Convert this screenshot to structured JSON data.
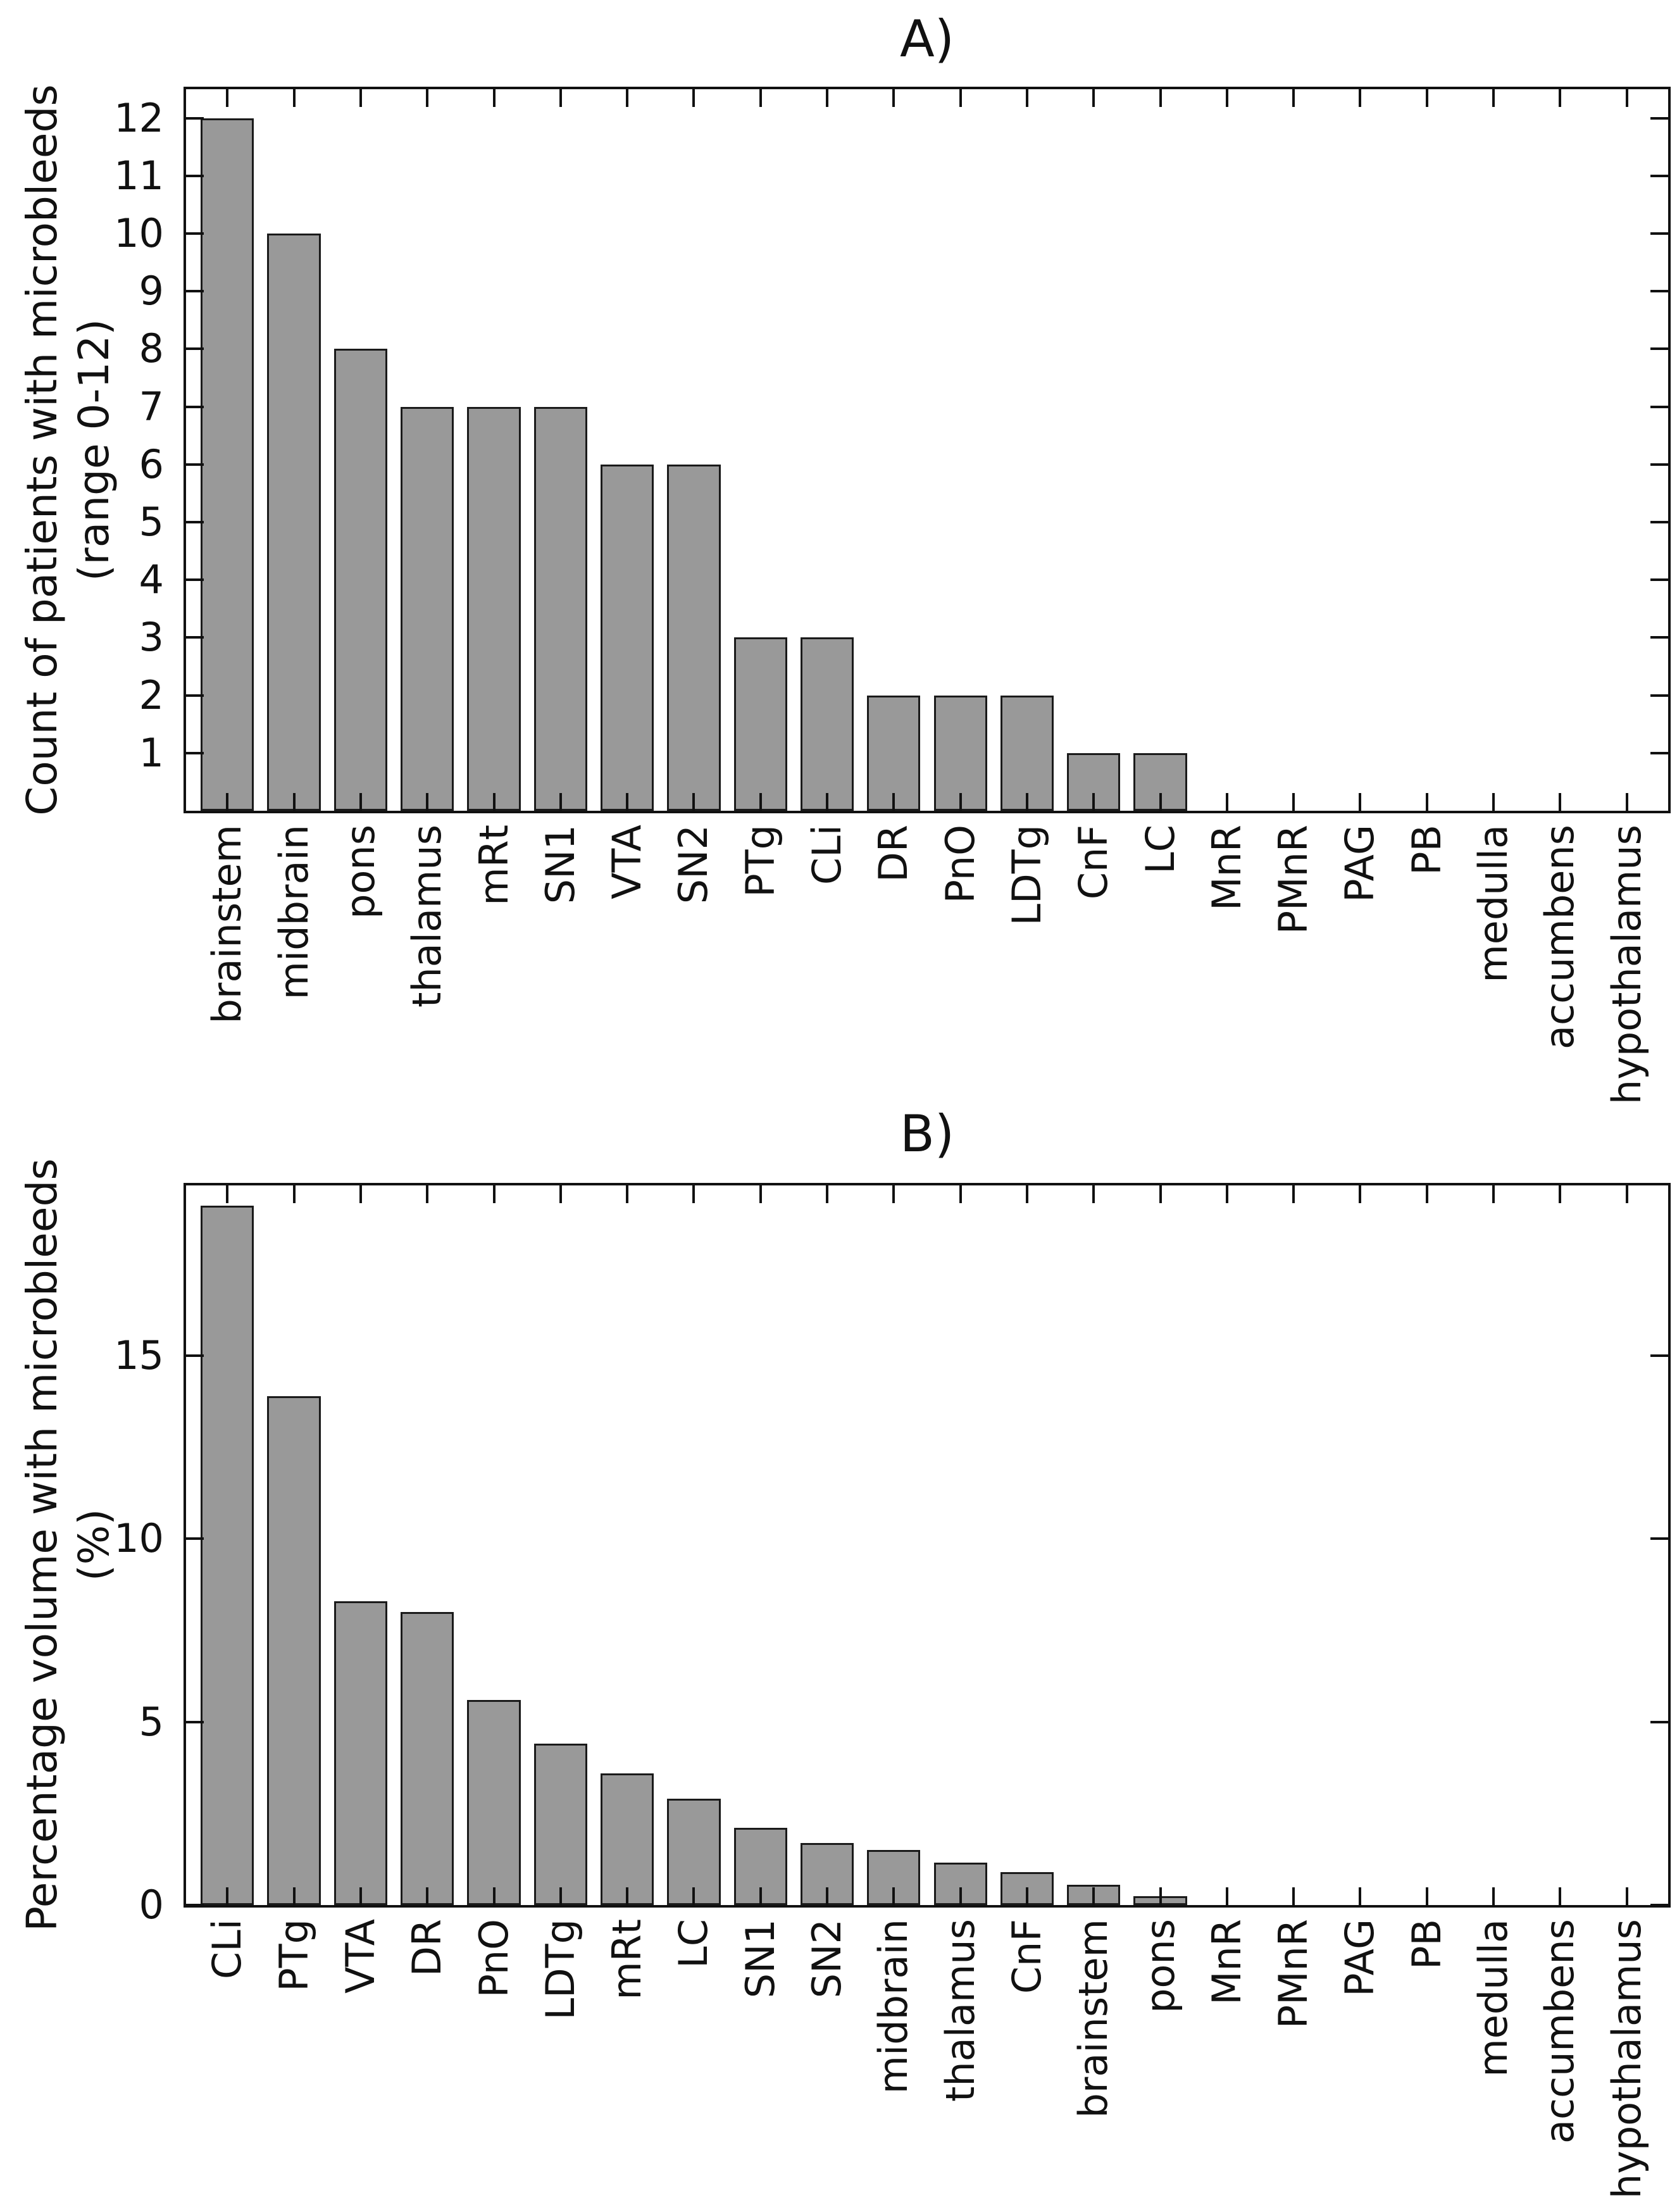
{
  "figure_titles": {
    "panel_a": "A)",
    "panel_b": "B)"
  },
  "panels": [
    {
      "title": "A)",
      "ylabel_line1": "Count of patients with microbleeds",
      "ylabel_line2": "(range 0-12)"
    },
    {
      "title": "B)",
      "ylabel_line1": "Percentage volume with microbleeds",
      "ylabel_line2": "(%)"
    }
  ],
  "chart_data": [
    {
      "type": "bar",
      "title": "A)",
      "xlabel": "",
      "ylabel": "Count of patients with microbleeds (range 0-12)",
      "categories": [
        "brainstem",
        "midbrain",
        "pons",
        "thalamus",
        "mRt",
        "SN1",
        "VTA",
        "SN2",
        "PTg",
        "CLi",
        "DR",
        "PnO",
        "LDTg",
        "CnF",
        "LC",
        "MnR",
        "PMnR",
        "PAG",
        "PB",
        "medulla",
        "accumbens",
        "hypothalamus"
      ],
      "values": [
        12,
        10,
        8,
        7,
        7,
        7,
        6,
        6,
        3,
        3,
        2,
        2,
        2,
        1,
        1,
        0,
        0,
        0,
        0,
        0,
        0,
        0
      ],
      "ylim": [
        0,
        12.5
      ],
      "yticks": [
        1,
        2,
        3,
        4,
        5,
        6,
        7,
        8,
        9,
        10,
        11,
        12
      ],
      "grid": false,
      "legend": null,
      "box": true,
      "tick_direction": "in",
      "bar_color": "#999999",
      "bar_edge_color": "#1a1a1a",
      "xtick_label_rotation_deg": 90
    },
    {
      "type": "bar",
      "title": "B)",
      "xlabel": "",
      "ylabel": "Percentage volume with microbleeds (%)",
      "categories": [
        "CLi",
        "PTg",
        "VTA",
        "DR",
        "PnO",
        "LDTg",
        "mRt",
        "LC",
        "SN1",
        "SN2",
        "midbrain",
        "thalamus",
        "CnF",
        "brainstem",
        "pons",
        "MnR",
        "PMnR",
        "PAG",
        "PB",
        "medulla",
        "accumbens",
        "hypothalamus"
      ],
      "values": [
        19.1,
        13.9,
        8.3,
        8.0,
        5.6,
        4.4,
        3.6,
        2.9,
        2.1,
        1.7,
        1.5,
        1.15,
        0.9,
        0.55,
        0.25,
        0,
        0,
        0,
        0,
        0,
        0,
        0
      ],
      "ylim": [
        0,
        19.65
      ],
      "yticks": [
        0,
        5,
        10,
        15
      ],
      "grid": false,
      "legend": null,
      "box": true,
      "tick_direction": "in",
      "bar_color": "#999999",
      "bar_edge_color": "#1a1a1a",
      "xtick_label_rotation_deg": 90
    }
  ]
}
